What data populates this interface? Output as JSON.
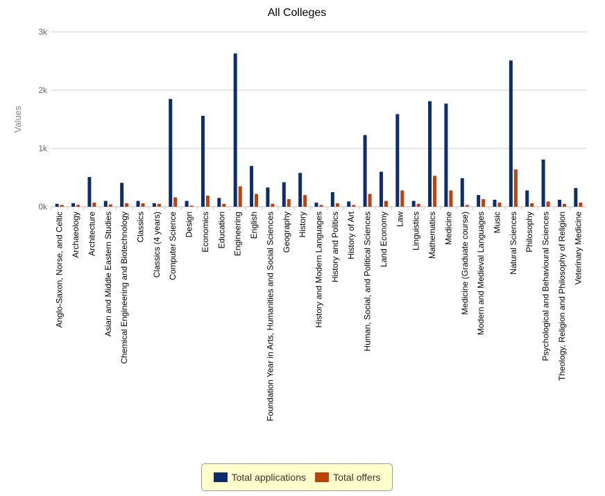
{
  "chart_data": {
    "type": "bar",
    "title": "All Colleges",
    "xlabel": "",
    "ylabel": "Values",
    "ylim": [
      0,
      3000
    ],
    "yticks": [
      {
        "value": 0,
        "label": "0k"
      },
      {
        "value": 1000,
        "label": "1k"
      },
      {
        "value": 2000,
        "label": "2k"
      },
      {
        "value": 3000,
        "label": "3k"
      }
    ],
    "grid": true,
    "legend_position": "bottom",
    "categories": [
      "Anglo-Saxon, Norse, and Celtic",
      "Archaeology",
      "Architecture",
      "Asian and Middle Eastern Studies",
      "Chemical Engineering and Biotechnology",
      "Classics",
      "Classics (4 years)",
      "Computer Science",
      "Design",
      "Economics",
      "Education",
      "Engineering",
      "English",
      "Foundation Year in Arts, Humanities and Social Sciences",
      "Geography",
      "History",
      "History and Modern Languages",
      "History and Politics",
      "History of Art",
      "Human, Social, and Political Sciences",
      "Land Economy",
      "Law",
      "Linguistics",
      "Mathematics",
      "Medicine",
      "Medicine (Graduate course)",
      "Modern and Medieval Languages",
      "Music",
      "Natural Sciences",
      "Philosophy",
      "Psychological and Behavioural Sciences",
      "Theology, Religion and Philosophy of Religion",
      "Veterinary Medicine"
    ],
    "series": [
      {
        "name": "Total applications",
        "color": "#0d2d6b",
        "values": [
          50,
          60,
          510,
          100,
          410,
          100,
          60,
          1850,
          100,
          1560,
          150,
          2630,
          700,
          330,
          420,
          580,
          70,
          250,
          90,
          1230,
          600,
          1590,
          100,
          1810,
          1770,
          490,
          200,
          120,
          2510,
          280,
          810,
          120,
          320
        ]
      },
      {
        "name": "Total offers",
        "color": "#c0400c",
        "values": [
          30,
          30,
          70,
          40,
          60,
          60,
          50,
          160,
          20,
          190,
          50,
          350,
          220,
          50,
          130,
          200,
          30,
          60,
          30,
          220,
          100,
          280,
          50,
          530,
          280,
          30,
          130,
          70,
          640,
          60,
          90,
          50,
          70
        ]
      }
    ]
  }
}
